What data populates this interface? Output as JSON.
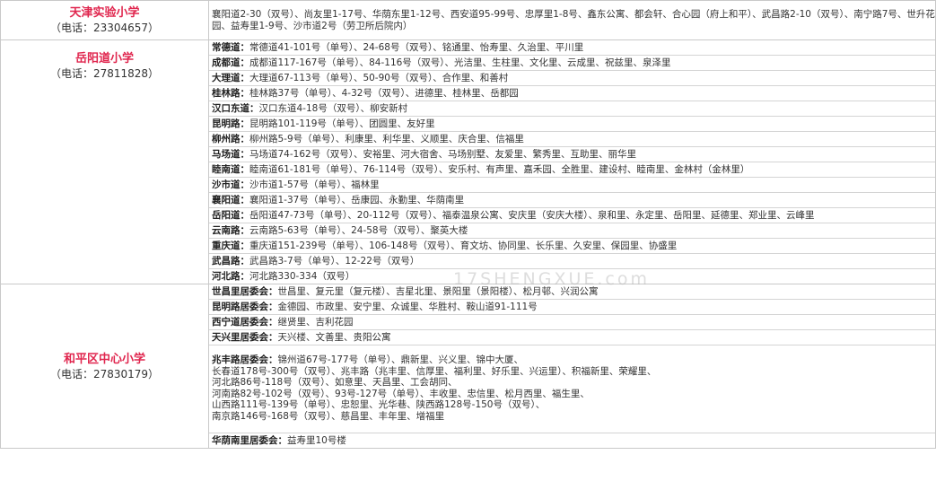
{
  "schools": [
    {
      "name": "天津实验小学",
      "phone": "（电话：23304657）",
      "text": "襄阳道2-30（双号）、尚友里1-17号、华荫东里1-12号、西安道95-99号、忠厚里1-8号、鑫东公寓、都会轩、合心园（府上和平）、武昌路2-10（双号）、南宁路7号、世升花园、益寿里1-9号、沙市道2号（劳卫所后院内）"
    },
    {
      "name": "岳阳道小学",
      "phone": "（电话：27811828）",
      "rows": [
        {
          "label": "常德道：",
          "text": "常德道41-101号（单号）、24-68号（双号）、铭通里、怡寿里、久治里、平川里"
        },
        {
          "label": "成都道：",
          "text": "成都道117-167号（单号）、84-116号（双号）、光洁里、生柱里、文化里、云成里、祝兹里、泉泽里"
        },
        {
          "label": "大理道：",
          "text": "大理道67-113号（单号）、50-90号（双号）、合作里、和善村"
        },
        {
          "label": "桂林路：",
          "text": "桂林路37号（单号）、4-32号（双号）、进德里、桂林里、岳都园"
        },
        {
          "label": "汉口东道：",
          "text": "汉口东道4-18号（双号）、柳安新村"
        },
        {
          "label": "昆明路：",
          "text": "昆明路101-119号（单号）、团圆里、友好里"
        },
        {
          "label": "柳州路：",
          "text": "柳州路5-9号（单号）、利康里、利华里、义顺里、庆合里、信福里"
        },
        {
          "label": "马场道：",
          "text": "马场道74-162号（双号）、安裕里、河大宿舍、马场别墅、友爱里、繁秀里、互助里、丽华里"
        },
        {
          "label": "睦南道：",
          "text": "睦南道61-181号（单号）、76-114号（双号）、安乐村、有声里、嘉禾园、全胜里、建设村、睦南里、金林村（金林里）"
        },
        {
          "label": "沙市道：",
          "text": "沙市道1-57号（单号）、福林里"
        },
        {
          "label": "襄阳道：",
          "text": "襄阳道1-37号（单号）、岳康园、永勤里、华荫南里"
        },
        {
          "label": "岳阳道：",
          "text": "岳阳道47-73号（单号）、20-112号（双号）、福泰温泉公寓、安庆里（安庆大楼）、泉和里、永定里、岳阳里、延德里、郑业里、云峰里"
        },
        {
          "label": "云南路：",
          "text": "云南路5-63号（单号）、24-58号（双号）、聚英大楼"
        },
        {
          "label": "重庆道：",
          "text": "重庆道151-239号（单号）、106-148号（双号）、育文坊、协同里、长乐里、久安里、保园里、协盛里"
        },
        {
          "label": "武昌路：",
          "text": "武昌路3-7号（单号）、12-22号（双号）"
        },
        {
          "label": "河北路：",
          "text": "河北路330-334（双号）"
        }
      ]
    },
    {
      "name": "和平区中心小学",
      "phone": "（电话：27830179）",
      "rows": [
        {
          "label": "世昌里居委会：",
          "text": "世昌里、复元里（复元楼）、吉星北里、景阳里（景阳楼）、松月邨、兴润公寓"
        },
        {
          "label": "昆明路居委会：",
          "text": "金德园、市政里、安宁里、众诚里、华胜村、鞍山道91-111号"
        },
        {
          "label": "西宁道居委会：",
          "text": "继贤里、吉利花园"
        },
        {
          "label": "天兴里居委会：",
          "text": "天兴楼、文善里、贵阳公寓"
        }
      ],
      "zhaofeng": {
        "label": "兆丰路居委会：",
        "lines": [
          "锦州道67号-177号（单号）、鼎新里、兴义里、锦中大厦、",
          "长春道178号-300号（双号）、兆丰路（兆丰里、信厚里、福利里、好乐里、兴运里）、积福新里、荣耀里、",
          "河北路86号-118号（双号）、如意里、天昌里、工会胡同、",
          "河南路82号-102号（双号）、93号-127号（单号）、丰收里、忠信里、松月西里、福生里、",
          "山西路111号-139号（单号）、忠恕里、光华巷、陕西路128号-150号（双号）、",
          "南京路146号-168号（双号）、慈昌里、丰年里、增福里"
        ]
      },
      "last": {
        "label": "华荫南里居委会：",
        "text": "益寿里10号楼"
      }
    }
  ],
  "watermark": "17SHENGXUE.com",
  "colors": {
    "school_name": "#e0264e",
    "border": "#c9c9c9"
  }
}
